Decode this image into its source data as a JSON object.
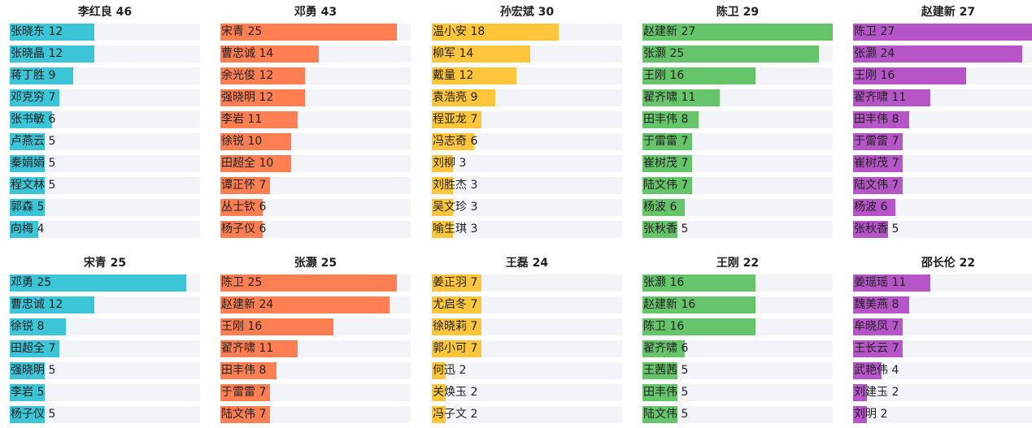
{
  "colors": [
    "#3cc4d7",
    "#ff7f52",
    "#ffc63c",
    "#66c46b",
    "#b555c7"
  ],
  "chart_data": [
    {
      "type": "bar",
      "title": "李红良 46",
      "color": "#3cc4d7",
      "categories": [
        "张晓东",
        "张晓晶",
        "蒋丁胜",
        "邓克穷",
        "张书敏",
        "卢燕云",
        "秦娟娟",
        "程文林",
        "郭森",
        "向梅"
      ],
      "values": [
        12,
        12,
        9,
        7,
        6,
        5,
        5,
        5,
        5,
        4
      ],
      "labels": [
        "张晓东 12",
        "张晓晶 12",
        "蒋丁胜 9",
        "邓克穷 7",
        "张书敏 6",
        "卢燕云 5",
        "秦娟娟 5",
        "程文林 5",
        "郭森 5",
        "向梅 4"
      ]
    },
    {
      "type": "bar",
      "title": "邓勇 43",
      "color": "#ff7f52",
      "categories": [
        "宋青",
        "曹忠诚",
        "余光俊",
        "强晓明",
        "李岩",
        "徐锐",
        "田超全",
        "谭正怀",
        "丛士钦",
        "杨子仪"
      ],
      "values": [
        25,
        14,
        12,
        12,
        11,
        10,
        10,
        7,
        6,
        6
      ],
      "labels": [
        "宋青 25",
        "曹忠诚 14",
        "余光俊 12",
        "强晓明 12",
        "李岩 11",
        "徐锐 10",
        "田超全 10",
        "谭正怀 7",
        "丛士钦 6",
        "杨子仪 6"
      ]
    },
    {
      "type": "bar",
      "title": "孙宏斌 30",
      "color": "#ffc63c",
      "categories": [
        "温小安",
        "柳军",
        "戴量",
        "袁浩亮",
        "程亚龙",
        "冯志奇",
        "刘柳",
        "刘胜杰",
        "吴文珍",
        "喻生琪"
      ],
      "values": [
        18,
        14,
        12,
        9,
        7,
        6,
        3,
        3,
        3,
        3
      ],
      "labels": [
        "温小安 18",
        "柳军 14",
        "戴量 12",
        "袁浩亮 9",
        "程亚龙 7",
        "冯志奇 6",
        "刘柳 3",
        "刘胜杰 3",
        "吴文珍 3",
        "喻生琪 3"
      ]
    },
    {
      "type": "bar",
      "title": "陈卫 29",
      "color": "#66c46b",
      "categories": [
        "赵建新",
        "张灏",
        "王刚",
        "翟齐啸",
        "田丰伟",
        "于雷雷",
        "崔树茂",
        "陆文伟",
        "杨波",
        "张秋香"
      ],
      "values": [
        27,
        25,
        16,
        11,
        8,
        7,
        7,
        7,
        6,
        5
      ],
      "labels": [
        "赵建新 27",
        "张灏 25",
        "王刚 16",
        "翟齐啸 11",
        "田丰伟 8",
        "于雷雷 7",
        "崔树茂 7",
        "陆文伟 7",
        "杨波 6",
        "张秋香 5"
      ]
    },
    {
      "type": "bar",
      "title": "赵建新 27",
      "color": "#b555c7",
      "categories": [
        "陈卫",
        "张灏",
        "王刚",
        "翟齐啸",
        "田丰伟",
        "于雷雷",
        "崔树茂",
        "陆文伟",
        "杨波",
        "张秋香"
      ],
      "values": [
        27,
        24,
        16,
        11,
        8,
        7,
        7,
        7,
        6,
        5
      ],
      "labels": [
        "陈卫 27",
        "张灏 24",
        "王刚 16",
        "翟齐啸 11",
        "田丰伟 8",
        "于雷雷 7",
        "崔树茂 7",
        "陆文伟 7",
        "杨波 6",
        "张秋香 5"
      ]
    },
    {
      "type": "bar",
      "title": "宋青 25",
      "color": "#3cc4d7",
      "categories": [
        "邓勇",
        "曹忠诚",
        "徐锐",
        "田超全",
        "强晓明",
        "李岩",
        "杨子仪"
      ],
      "values": [
        25,
        12,
        8,
        7,
        5,
        5,
        5
      ],
      "labels": [
        "邓勇 25",
        "曹忠诚 12",
        "徐锐 8",
        "田超全 7",
        "强晓明 5",
        "李岩 5",
        "杨子仪 5"
      ]
    },
    {
      "type": "bar",
      "title": "张灏 25",
      "color": "#ff7f52",
      "categories": [
        "陈卫",
        "赵建新",
        "王刚",
        "翟齐啸",
        "田丰伟",
        "于雷雷",
        "陆文伟"
      ],
      "values": [
        25,
        24,
        16,
        11,
        8,
        7,
        7
      ],
      "labels": [
        "陈卫 25",
        "赵建新 24",
        "王刚 16",
        "翟齐啸 11",
        "田丰伟 8",
        "于雷雷 7",
        "陆文伟 7"
      ]
    },
    {
      "type": "bar",
      "title": "王磊 24",
      "color": "#ffc63c",
      "categories": [
        "姜正羽",
        "尤启冬",
        "徐晓莉",
        "郭小可",
        "何迅",
        "关焕玉",
        "冯子文"
      ],
      "values": [
        7,
        7,
        7,
        7,
        2,
        2,
        2
      ],
      "labels": [
        "姜正羽 7",
        "尤启冬 7",
        "徐晓莉 7",
        "郭小可 7",
        "何迅 2",
        "关焕玉 2",
        "冯子文 2"
      ]
    },
    {
      "type": "bar",
      "title": "王刚 22",
      "color": "#66c46b",
      "categories": [
        "张灏",
        "赵建新",
        "陈卫",
        "翟齐啸",
        "王茜茜",
        "田丰伟",
        "陆文伟"
      ],
      "values": [
        16,
        16,
        16,
        6,
        5,
        5,
        5
      ],
      "labels": [
        "张灏 16",
        "赵建新 16",
        "陈卫 16",
        "翟齐啸 6",
        "王茜茜 5",
        "田丰伟 5",
        "陆文伟 5"
      ]
    },
    {
      "type": "bar",
      "title": "邵长伦 22",
      "color": "#b555c7",
      "categories": [
        "姜瑶瑶",
        "魏美燕",
        "牟晓凤",
        "王长云",
        "武艳伟",
        "刘建玉",
        "刘明"
      ],
      "values": [
        11,
        8,
        7,
        7,
        4,
        2,
        2
      ],
      "labels": [
        "姜瑶瑶 11",
        "魏美燕 8",
        "牟晓凤 7",
        "王长云 7",
        "武艳伟 4",
        "刘建玉 2",
        "刘明 2"
      ]
    }
  ]
}
